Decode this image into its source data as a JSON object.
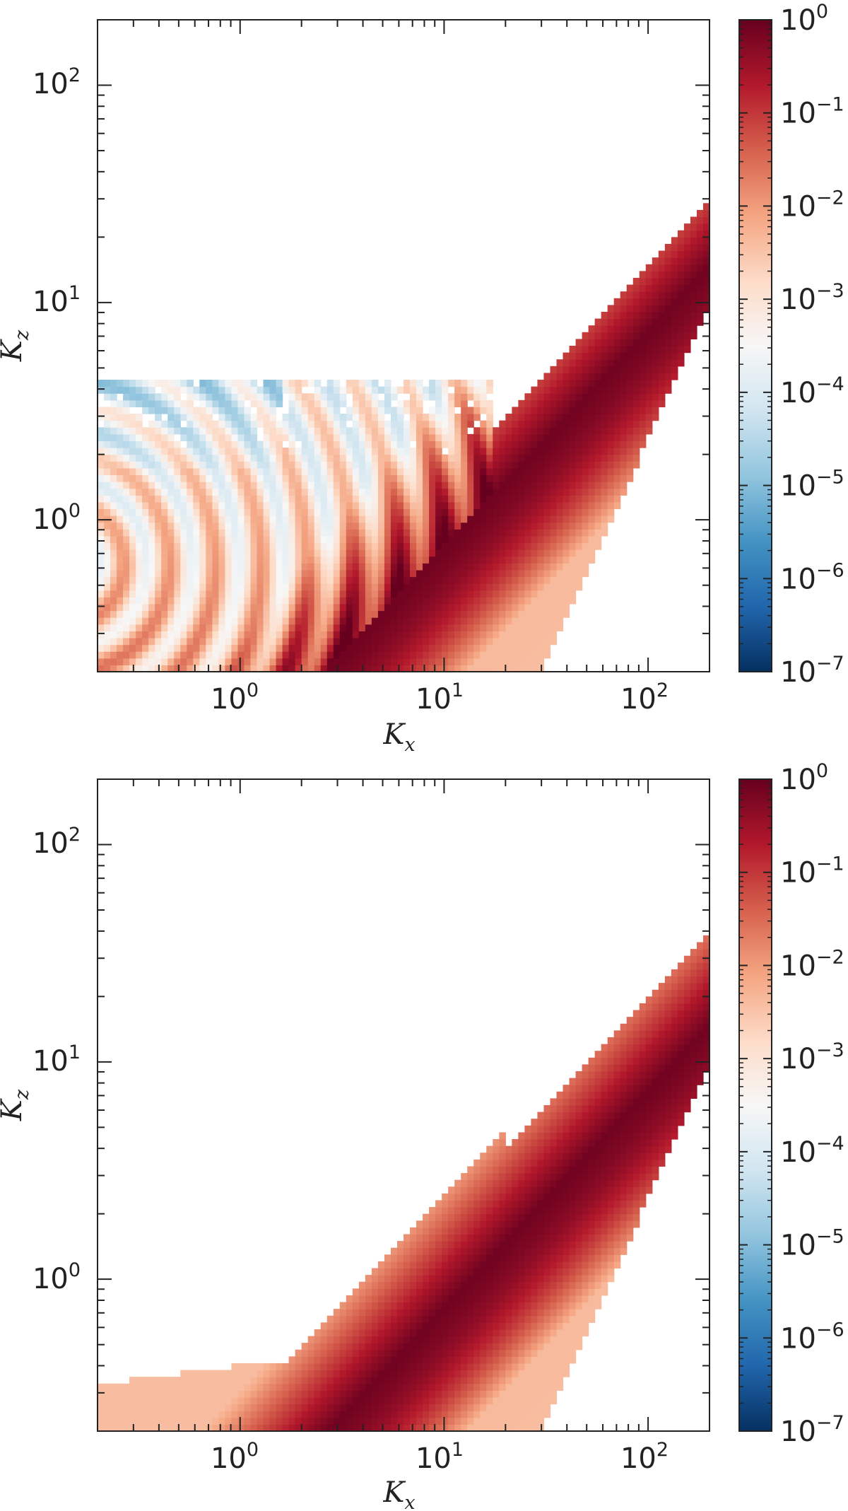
{
  "chart_data": [
    {
      "type": "heatmap",
      "xlabel": "K",
      "xlabel_sub": "x",
      "ylabel": "K",
      "ylabel_sub": "z",
      "x_scale": "log",
      "y_scale": "log",
      "xlim": [
        0.2,
        200
      ],
      "ylim": [
        0.2,
        200
      ],
      "x_ticks": [
        {
          "base": "10",
          "exp": "0",
          "value": 1
        },
        {
          "base": "10",
          "exp": "1",
          "value": 10
        },
        {
          "base": "10",
          "exp": "2",
          "value": 100
        }
      ],
      "y_ticks": [
        {
          "base": "10",
          "exp": "0",
          "value": 1
        },
        {
          "base": "10",
          "exp": "1",
          "value": 10
        },
        {
          "base": "10",
          "exp": "2",
          "value": 100
        }
      ],
      "grid": false,
      "colormap": "RdBu_r (log scale)",
      "colorbar": {
        "scale": "log",
        "range": [
          1e-07,
          1
        ],
        "ticks": [
          {
            "base": "10",
            "exp": "0"
          },
          {
            "base": "10",
            "exp": "−1"
          },
          {
            "base": "10",
            "exp": "−2"
          },
          {
            "base": "10",
            "exp": "−3"
          },
          {
            "base": "10",
            "exp": "−4"
          },
          {
            "base": "10",
            "exp": "−5"
          },
          {
            "base": "10",
            "exp": "−6"
          },
          {
            "base": "10",
            "exp": "−7"
          }
        ],
        "colors": [
          "#053061",
          "#2166ac",
          "#4393c3",
          "#92c5de",
          "#d1e5f0",
          "#f7f7f7",
          "#fddbc7",
          "#f4a582",
          "#d6604d",
          "#b2182b",
          "#67001f"
        ]
      },
      "ridge": {
        "slope": 1.0,
        "coefficient": 0.075,
        "description": "peak values ~1 along Kz ≈ 0.075·Kx"
      },
      "low_kx_oscillation_region": true
    },
    {
      "type": "heatmap",
      "xlabel": "K",
      "xlabel_sub": "x",
      "ylabel": "K",
      "ylabel_sub": "z",
      "x_scale": "log",
      "y_scale": "log",
      "xlim": [
        0.2,
        200
      ],
      "ylim": [
        0.2,
        200
      ],
      "x_ticks": [
        {
          "base": "10",
          "exp": "0",
          "value": 1
        },
        {
          "base": "10",
          "exp": "1",
          "value": 10
        },
        {
          "base": "10",
          "exp": "2",
          "value": 100
        }
      ],
      "y_ticks": [
        {
          "base": "10",
          "exp": "0",
          "value": 1
        },
        {
          "base": "10",
          "exp": "1",
          "value": 10
        },
        {
          "base": "10",
          "exp": "2",
          "value": 100
        }
      ],
      "grid": false,
      "colormap": "RdBu_r (log scale)",
      "colorbar": {
        "scale": "log",
        "range": [
          1e-07,
          1
        ],
        "ticks": [
          {
            "base": "10",
            "exp": "0"
          },
          {
            "base": "10",
            "exp": "−1"
          },
          {
            "base": "10",
            "exp": "−2"
          },
          {
            "base": "10",
            "exp": "−3"
          },
          {
            "base": "10",
            "exp": "−4"
          },
          {
            "base": "10",
            "exp": "−5"
          },
          {
            "base": "10",
            "exp": "−6"
          },
          {
            "base": "10",
            "exp": "−7"
          }
        ],
        "colors": [
          "#053061",
          "#2166ac",
          "#4393c3",
          "#92c5de",
          "#d1e5f0",
          "#f7f7f7",
          "#fddbc7",
          "#f4a582",
          "#d6604d",
          "#b2182b",
          "#67001f"
        ]
      },
      "ridge": {
        "slope": 1.0,
        "coefficient": 0.075,
        "description": "peak values ~1 along Kz ≈ 0.075·Kx"
      },
      "low_kx_oscillation_region": false
    }
  ]
}
